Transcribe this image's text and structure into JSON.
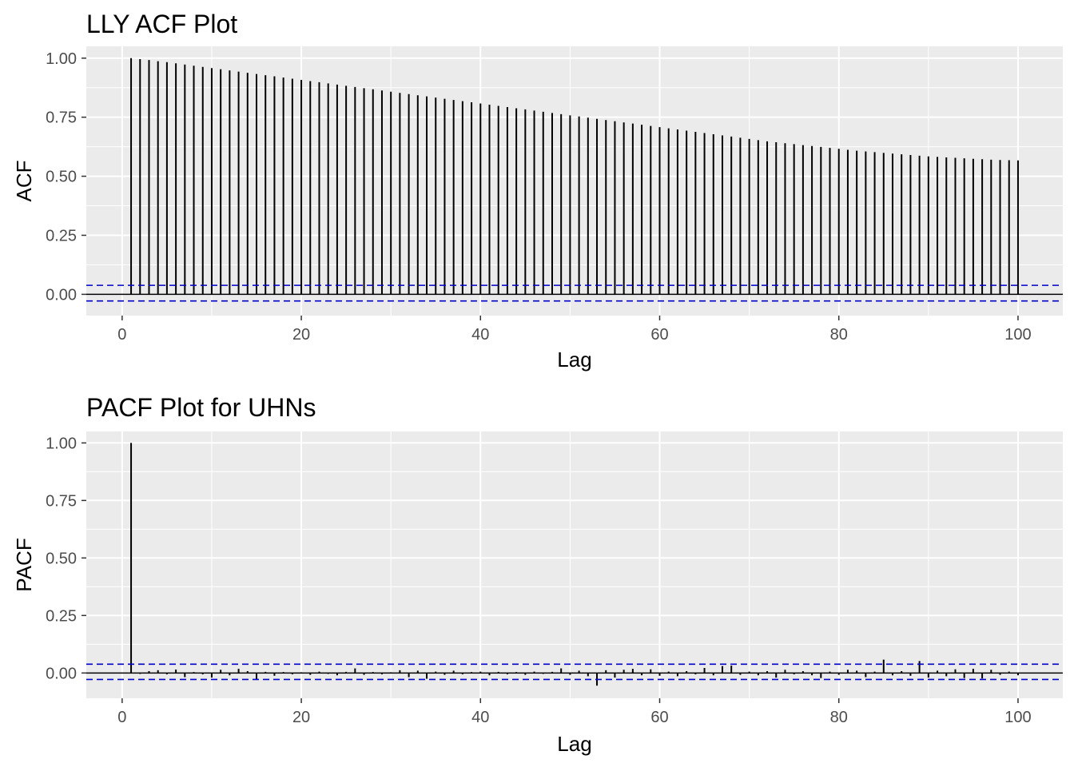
{
  "chart_data": [
    {
      "type": "bar",
      "title": "LLY ACF Plot",
      "xlabel": "Lag",
      "ylabel": "ACF",
      "xlim": [
        -4,
        105
      ],
      "ylim": [
        -0.09,
        1.05
      ],
      "xticks": [
        0,
        20,
        40,
        60,
        80,
        100
      ],
      "xtick_labels": [
        "0",
        "20",
        "40",
        "60",
        "80",
        "100"
      ],
      "yticks": [
        0.0,
        0.25,
        0.5,
        0.75,
        1.0
      ],
      "ytick_labels": [
        "0.00",
        "0.25",
        "0.50",
        "0.75",
        "1.00"
      ],
      "confidence_bounds": [
        0.0381,
        -0.0281
      ],
      "colors": {
        "panel": "#ebebeb",
        "grid": "#ffffff",
        "bar": "#000000",
        "bounds": "#0000cc"
      },
      "x": [
        1,
        2,
        3,
        4,
        5,
        6,
        7,
        8,
        9,
        10,
        11,
        12,
        13,
        14,
        15,
        16,
        17,
        18,
        19,
        20,
        21,
        22,
        23,
        24,
        25,
        26,
        27,
        28,
        29,
        30,
        31,
        32,
        33,
        34,
        35,
        36,
        37,
        38,
        39,
        40,
        41,
        42,
        43,
        44,
        45,
        46,
        47,
        48,
        49,
        50,
        51,
        52,
        53,
        54,
        55,
        56,
        57,
        58,
        59,
        60,
        61,
        62,
        63,
        64,
        65,
        66,
        67,
        68,
        69,
        70,
        71,
        72,
        73,
        74,
        75,
        76,
        77,
        78,
        79,
        80,
        81,
        82,
        83,
        84,
        85,
        86,
        87,
        88,
        89,
        90,
        91,
        92,
        93,
        94,
        95,
        96,
        97,
        98,
        99,
        100
      ],
      "values": [
        1.0,
        0.996,
        0.992,
        0.987,
        0.983,
        0.978,
        0.973,
        0.968,
        0.963,
        0.958,
        0.953,
        0.948,
        0.943,
        0.938,
        0.933,
        0.928,
        0.923,
        0.918,
        0.913,
        0.908,
        0.903,
        0.898,
        0.893,
        0.888,
        0.883,
        0.878,
        0.873,
        0.868,
        0.863,
        0.858,
        0.853,
        0.848,
        0.843,
        0.838,
        0.833,
        0.828,
        0.823,
        0.818,
        0.813,
        0.808,
        0.803,
        0.798,
        0.793,
        0.788,
        0.783,
        0.778,
        0.773,
        0.768,
        0.763,
        0.758,
        0.753,
        0.748,
        0.743,
        0.738,
        0.733,
        0.728,
        0.723,
        0.718,
        0.713,
        0.708,
        0.703,
        0.698,
        0.693,
        0.688,
        0.683,
        0.678,
        0.673,
        0.668,
        0.663,
        0.658,
        0.653,
        0.648,
        0.644,
        0.64,
        0.636,
        0.632,
        0.628,
        0.624,
        0.62,
        0.616,
        0.612,
        0.608,
        0.605,
        0.602,
        0.599,
        0.596,
        0.593,
        0.59,
        0.587,
        0.584,
        0.582,
        0.58,
        0.578,
        0.576,
        0.574,
        0.572,
        0.57,
        0.569,
        0.568,
        0.567
      ]
    },
    {
      "type": "bar",
      "title": "PACF Plot for UHNs",
      "xlabel": "Lag",
      "ylabel": "PACF",
      "xlim": [
        -4,
        105
      ],
      "ylim": [
        -0.11,
        1.05
      ],
      "xticks": [
        0,
        20,
        40,
        60,
        80,
        100
      ],
      "xtick_labels": [
        "0",
        "20",
        "40",
        "60",
        "80",
        "100"
      ],
      "yticks": [
        0.0,
        0.25,
        0.5,
        0.75,
        1.0
      ],
      "ytick_labels": [
        "0.00",
        "0.25",
        "0.50",
        "0.75",
        "1.00"
      ],
      "confidence_bounds": [
        0.0381,
        -0.0281
      ],
      "colors": {
        "panel": "#ebebeb",
        "grid": "#ffffff",
        "bar": "#000000",
        "bounds": "#0000cc"
      },
      "x": [
        1,
        2,
        3,
        4,
        5,
        6,
        7,
        8,
        9,
        10,
        11,
        12,
        13,
        14,
        15,
        16,
        17,
        18,
        19,
        20,
        21,
        22,
        23,
        24,
        25,
        26,
        27,
        28,
        29,
        30,
        31,
        32,
        33,
        34,
        35,
        36,
        37,
        38,
        39,
        40,
        41,
        42,
        43,
        44,
        45,
        46,
        47,
        48,
        49,
        50,
        51,
        52,
        53,
        54,
        55,
        56,
        57,
        58,
        59,
        60,
        61,
        62,
        63,
        64,
        65,
        66,
        67,
        68,
        69,
        70,
        71,
        72,
        73,
        74,
        75,
        76,
        77,
        78,
        79,
        80,
        81,
        82,
        83,
        84,
        85,
        86,
        87,
        88,
        89,
        90,
        91,
        92,
        93,
        94,
        95,
        96,
        97,
        98,
        99,
        100
      ],
      "values": [
        1.0,
        -0.004,
        0.008,
        0.012,
        -0.006,
        0.015,
        -0.018,
        0.004,
        -0.006,
        -0.02,
        0.014,
        -0.01,
        0.018,
        0.008,
        -0.03,
        0.005,
        -0.012,
        0.004,
        -0.006,
        0.003,
        -0.008,
        0.006,
        -0.004,
        -0.01,
        0.005,
        0.02,
        -0.008,
        0.004,
        -0.006,
        0.003,
        0.012,
        -0.018,
        0.01,
        -0.025,
        0.006,
        -0.008,
        0.01,
        -0.006,
        0.004,
        0.006,
        -0.01,
        0.005,
        -0.006,
        0.004,
        -0.008,
        0.006,
        -0.004,
        0.005,
        0.02,
        -0.008,
        0.01,
        -0.014,
        -0.055,
        0.012,
        -0.02,
        0.014,
        0.018,
        -0.01,
        0.016,
        -0.012,
        0.006,
        -0.014,
        0.008,
        -0.006,
        0.022,
        -0.01,
        0.03,
        0.032,
        -0.008,
        0.006,
        -0.01,
        0.008,
        -0.02,
        0.014,
        -0.006,
        0.008,
        -0.01,
        -0.022,
        0.006,
        -0.008,
        0.014,
        0.01,
        -0.018,
        0.006,
        0.058,
        -0.01,
        0.008,
        -0.012,
        0.052,
        -0.02,
        0.01,
        -0.014,
        0.016,
        -0.022,
        0.018,
        -0.024,
        0.014,
        -0.008,
        0.006,
        -0.01
      ]
    }
  ]
}
